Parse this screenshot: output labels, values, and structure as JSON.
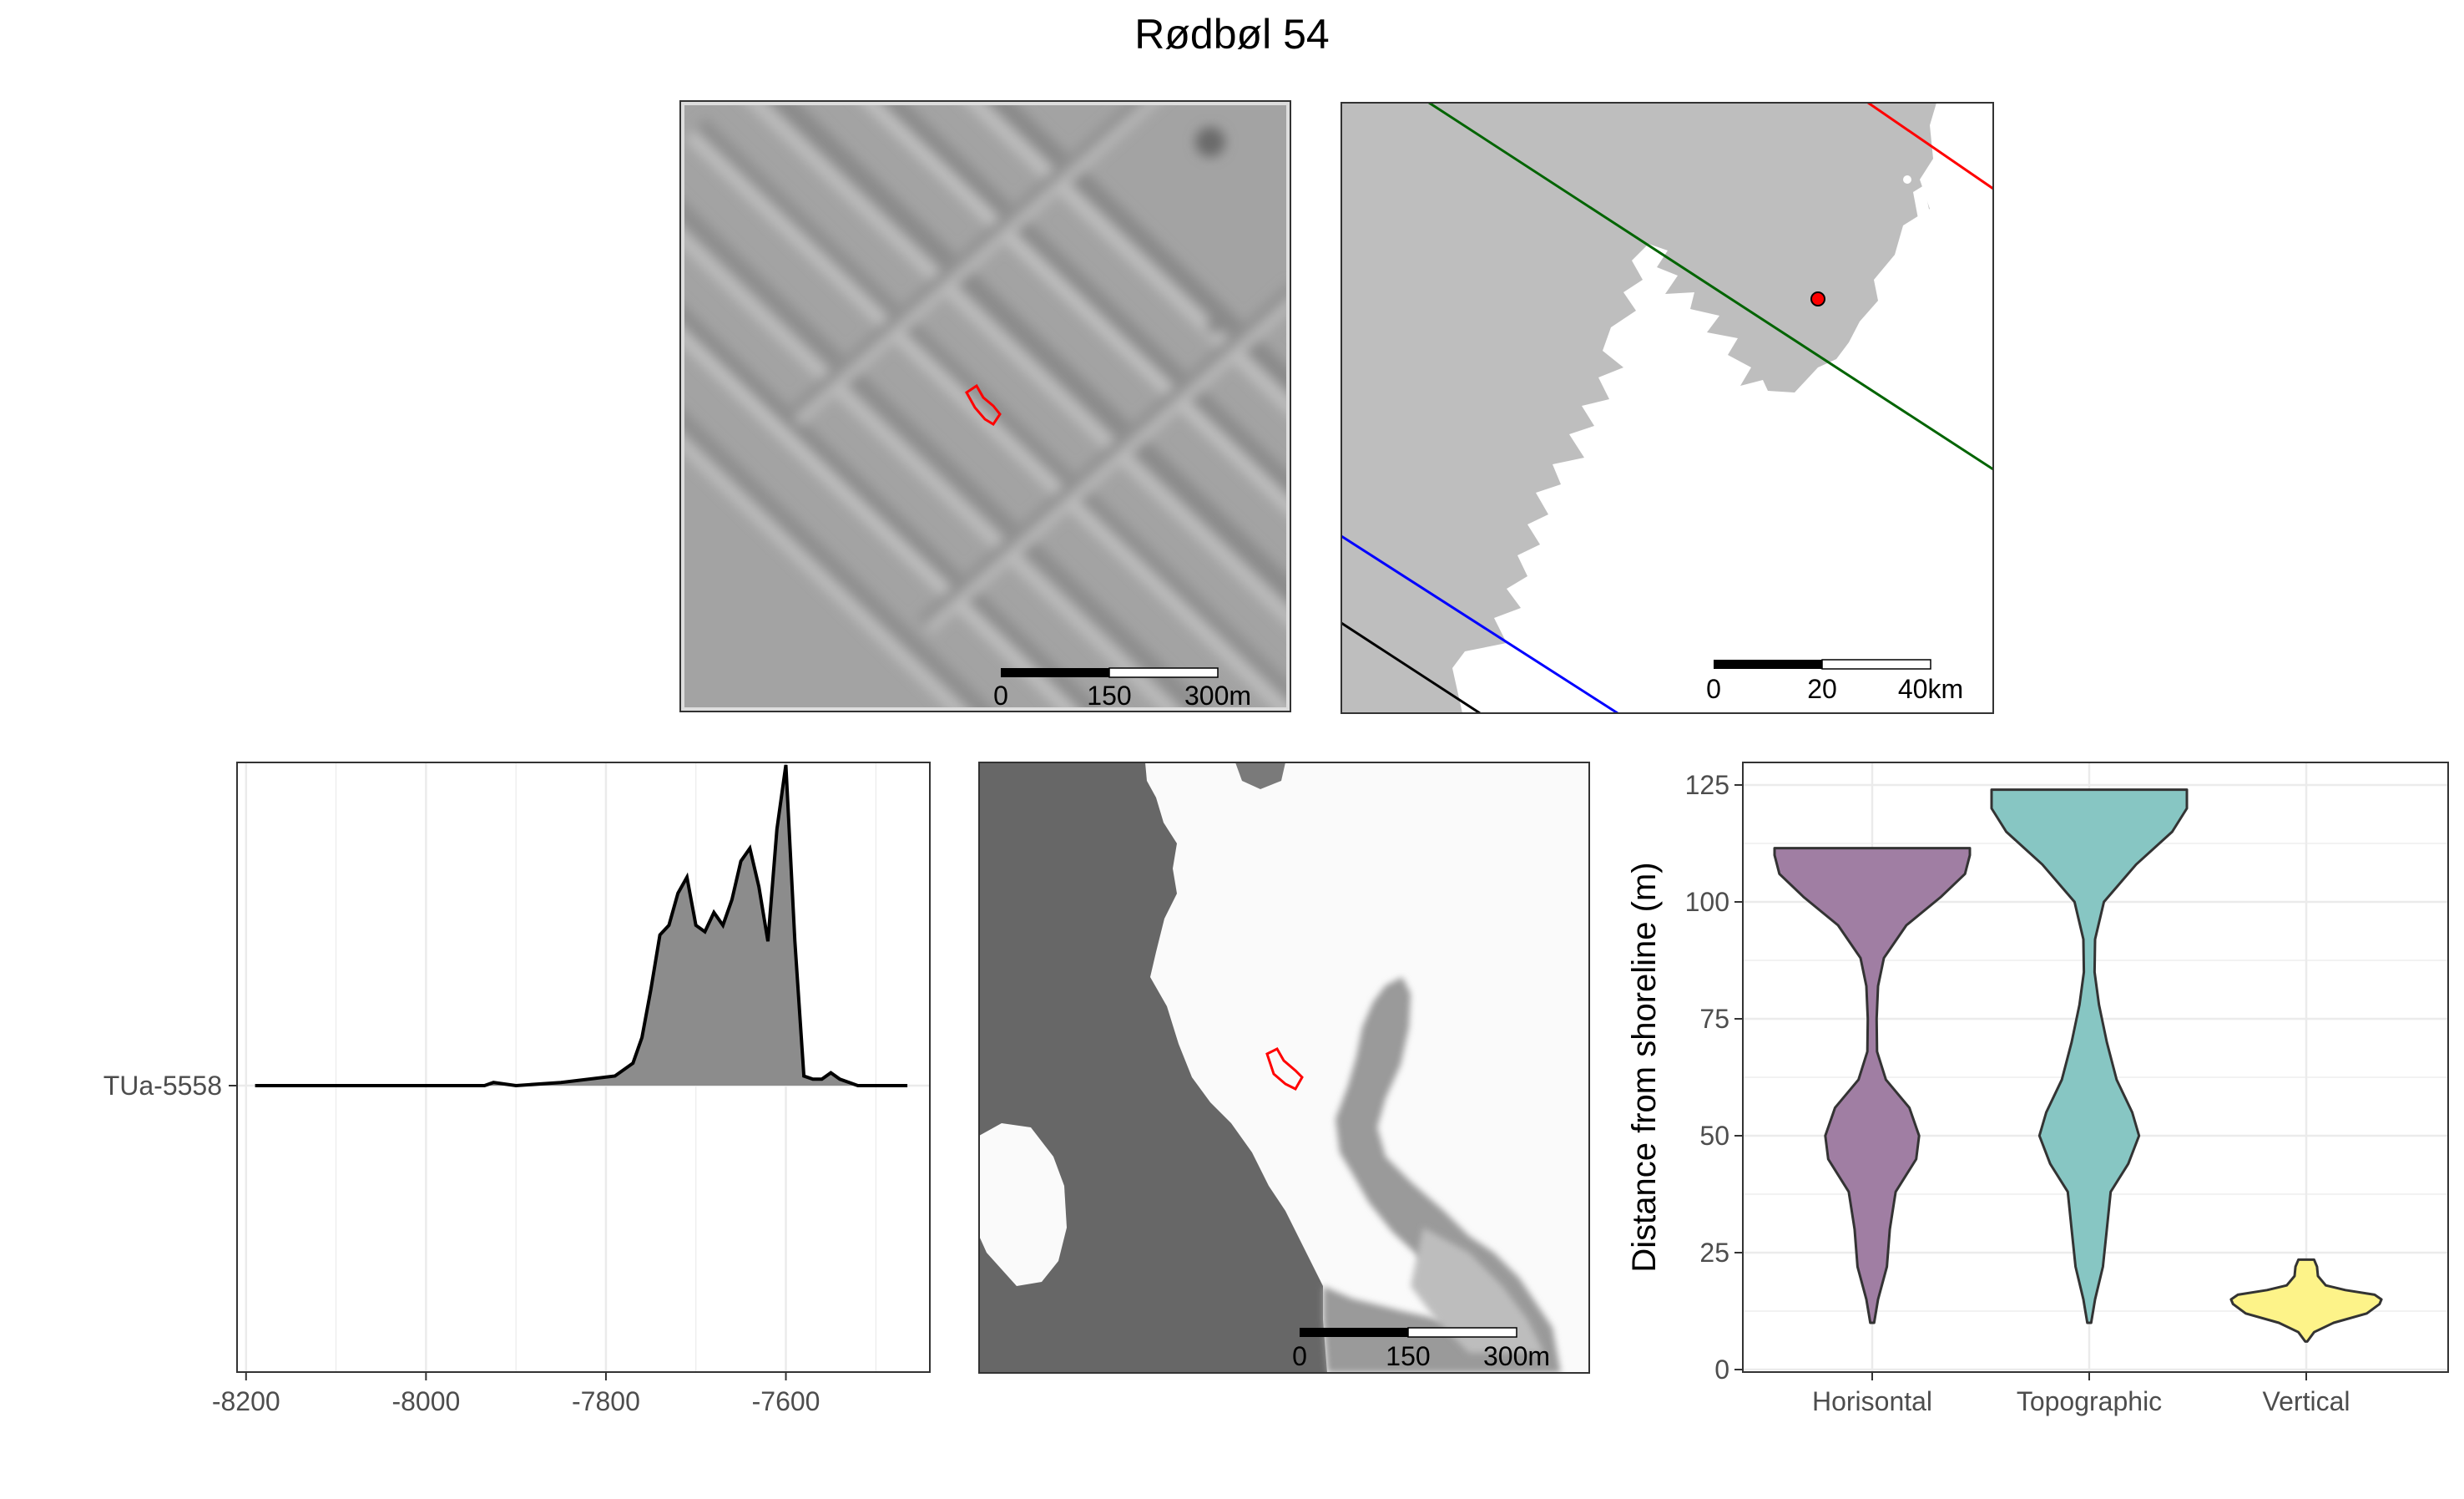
{
  "title": "Rødbøl 54",
  "hillshade_panel": {
    "scale_labels": [
      "0",
      "150",
      "300m"
    ]
  },
  "overview_panel": {
    "scale_labels": [
      "0",
      "20",
      "40km"
    ],
    "line_colors": {
      "red": "#ff0000",
      "green": "#006400",
      "blue": "#0000ff",
      "black": "#000000"
    },
    "land_color": "#bebebe",
    "site_marker_color": "#ff0000"
  },
  "elevation_panel": {
    "scale_labels": [
      "0",
      "150",
      "300m"
    ]
  },
  "chart_data": [
    {
      "type": "area",
      "subtype": "density-ridge",
      "category_label": "TUa-5558",
      "xlim": [
        -8210,
        -7440
      ],
      "x_ticks": [
        -8200,
        -8000,
        -7800,
        -7600
      ],
      "grid": true,
      "fill_color": "#8c8c8c",
      "x": [
        -8190,
        -7935,
        -7925,
        -7900,
        -7850,
        -7790,
        -7770,
        -7760,
        -7750,
        -7740,
        -7730,
        -7720,
        -7710,
        -7700,
        -7690,
        -7680,
        -7670,
        -7660,
        -7650,
        -7640,
        -7630,
        -7620,
        -7610,
        -7600,
        -7590,
        -7580,
        -7570,
        -7560,
        -7550,
        -7540,
        -7520,
        -7465
      ],
      "y": [
        0.0,
        0.0,
        0.01,
        0.0,
        0.01,
        0.03,
        0.07,
        0.15,
        0.3,
        0.47,
        0.5,
        0.6,
        0.65,
        0.5,
        0.48,
        0.54,
        0.5,
        0.58,
        0.7,
        0.74,
        0.62,
        0.45,
        0.8,
        1.0,
        0.45,
        0.03,
        0.02,
        0.02,
        0.04,
        0.02,
        0.0,
        0.0
      ]
    },
    {
      "type": "violin",
      "ylabel": "Distance from shoreline (m)",
      "categories": [
        "Horisontal",
        "Topographic",
        "Vertical"
      ],
      "ylim": [
        0,
        125
      ],
      "y_ticks": [
        0,
        25,
        50,
        75,
        100,
        125
      ],
      "grid": true,
      "series": [
        {
          "name": "Horisontal",
          "color": "#a07ea3",
          "range": [
            10,
            111.5
          ],
          "profile": [
            [
              10,
              0.02
            ],
            [
              15,
              0.06
            ],
            [
              22,
              0.15
            ],
            [
              30,
              0.18
            ],
            [
              38,
              0.24
            ],
            [
              45,
              0.45
            ],
            [
              50,
              0.48
            ],
            [
              56,
              0.38
            ],
            [
              62,
              0.14
            ],
            [
              68,
              0.05
            ],
            [
              75,
              0.045
            ],
            [
              82,
              0.06
            ],
            [
              88,
              0.12
            ],
            [
              95,
              0.35
            ],
            [
              101,
              0.7
            ],
            [
              106,
              0.95
            ],
            [
              110,
              1.0
            ],
            [
              111.5,
              1.0
            ]
          ]
        },
        {
          "name": "Topographic",
          "color": "#87c6c3",
          "range": [
            10,
            124
          ],
          "profile": [
            [
              10,
              0.02
            ],
            [
              15,
              0.06
            ],
            [
              22,
              0.14
            ],
            [
              30,
              0.18
            ],
            [
              38,
              0.22
            ],
            [
              44,
              0.4
            ],
            [
              50,
              0.51
            ],
            [
              55,
              0.44
            ],
            [
              62,
              0.28
            ],
            [
              70,
              0.18
            ],
            [
              78,
              0.1
            ],
            [
              85,
              0.055
            ],
            [
              92,
              0.06
            ],
            [
              100,
              0.15
            ],
            [
              108,
              0.48
            ],
            [
              115,
              0.85
            ],
            [
              120,
              1.0
            ],
            [
              124,
              1.0
            ]
          ]
        },
        {
          "name": "Vertical",
          "color": "#fdf389",
          "range": [
            6,
            23.5
          ],
          "profile": [
            [
              6,
              0.01
            ],
            [
              8,
              0.08
            ],
            [
              10,
              0.28
            ],
            [
              12,
              0.62
            ],
            [
              14,
              0.75
            ],
            [
              15,
              0.77
            ],
            [
              16,
              0.7
            ],
            [
              17,
              0.4
            ],
            [
              18,
              0.2
            ],
            [
              20,
              0.12
            ],
            [
              22,
              0.11
            ],
            [
              23.5,
              0.08
            ]
          ]
        }
      ]
    }
  ]
}
